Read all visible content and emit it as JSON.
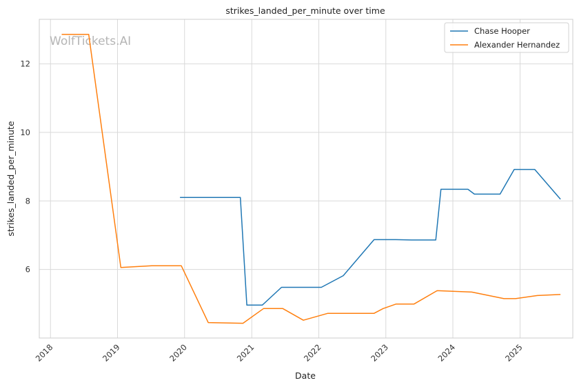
{
  "watermark": "WolfTickets.AI",
  "chart_data": {
    "type": "line",
    "title": "strikes_landed_per_minute over time",
    "xlabel": "Date",
    "ylabel": "strikes_landed_per_minute",
    "x_type": "date",
    "xlim": [
      "2017-11-01",
      "2025-10-15"
    ],
    "ylim": [
      4.0,
      13.3
    ],
    "x_ticks": [
      "2018",
      "2019",
      "2020",
      "2021",
      "2022",
      "2023",
      "2024",
      "2025"
    ],
    "y_ticks": [
      6,
      8,
      10,
      12
    ],
    "grid": true,
    "legend_position": "top-right",
    "series": [
      {
        "name": "Chase Hooper",
        "color": "#1f77b4",
        "points": [
          [
            "2019-12-07",
            8.1
          ],
          [
            "2020-10-31",
            8.1
          ],
          [
            "2020-12-05",
            4.96
          ],
          [
            "2021-02-27",
            4.96
          ],
          [
            "2021-06-12",
            5.48
          ],
          [
            "2022-01-15",
            5.48
          ],
          [
            "2022-05-14",
            5.82
          ],
          [
            "2022-10-29",
            6.87
          ],
          [
            "2023-02-25",
            6.87
          ],
          [
            "2023-05-20",
            6.86
          ],
          [
            "2023-09-30",
            6.86
          ],
          [
            "2023-10-28",
            8.34
          ],
          [
            "2024-03-23",
            8.34
          ],
          [
            "2024-04-27",
            8.2
          ],
          [
            "2024-09-14",
            8.2
          ],
          [
            "2024-11-30",
            8.92
          ],
          [
            "2025-03-22",
            8.92
          ],
          [
            "2025-04-26",
            8.7
          ],
          [
            "2025-08-09",
            8.05
          ]
        ]
      },
      {
        "name": "Alexander Hernandez",
        "color": "#ff7f0e",
        "points": [
          [
            "2018-03-03",
            12.86
          ],
          [
            "2018-07-28",
            12.86
          ],
          [
            "2019-01-19",
            6.06
          ],
          [
            "2019-07-06",
            6.11
          ],
          [
            "2019-12-14",
            6.11
          ],
          [
            "2020-05-09",
            4.45
          ],
          [
            "2020-11-14",
            4.43
          ],
          [
            "2021-03-06",
            4.86
          ],
          [
            "2021-06-19",
            4.86
          ],
          [
            "2021-10-09",
            4.52
          ],
          [
            "2022-02-19",
            4.72
          ],
          [
            "2022-10-29",
            4.72
          ],
          [
            "2022-12-17",
            4.86
          ],
          [
            "2023-02-25",
            4.99
          ],
          [
            "2023-06-03",
            4.99
          ],
          [
            "2023-10-07",
            5.38
          ],
          [
            "2024-04-13",
            5.34
          ],
          [
            "2024-10-05",
            5.15
          ],
          [
            "2024-12-07",
            5.15
          ],
          [
            "2025-04-05",
            5.24
          ],
          [
            "2025-08-09",
            5.27
          ]
        ]
      }
    ]
  }
}
